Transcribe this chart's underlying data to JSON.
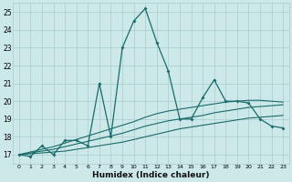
{
  "xlabel": "Humidex (Indice chaleur)",
  "ylabel": "",
  "bg_color": "#cce8e8",
  "grid_color": "#aacccc",
  "line_color": "#1a6b6b",
  "xlim": [
    -0.5,
    23.5
  ],
  "ylim": [
    16.5,
    25.5
  ],
  "yticks": [
    17,
    18,
    19,
    20,
    21,
    22,
    23,
    24,
    25
  ],
  "xticks": [
    0,
    1,
    2,
    3,
    4,
    5,
    6,
    7,
    8,
    9,
    10,
    11,
    12,
    13,
    14,
    15,
    16,
    17,
    18,
    19,
    20,
    21,
    22,
    23
  ],
  "series1_x": [
    0,
    1,
    2,
    3,
    4,
    5,
    6,
    7,
    8,
    9,
    10,
    11,
    12,
    13,
    14,
    15,
    16,
    17,
    18,
    19,
    20,
    21,
    22,
    23
  ],
  "series1_y": [
    17.0,
    16.9,
    17.5,
    17.0,
    17.8,
    17.8,
    17.5,
    21.0,
    18.0,
    23.0,
    24.5,
    25.2,
    23.3,
    21.7,
    19.0,
    19.0,
    20.2,
    21.2,
    20.0,
    20.0,
    19.9,
    19.0,
    18.6,
    18.5
  ],
  "series2_x": [
    0,
    1,
    2,
    3,
    4,
    5,
    6,
    7,
    8,
    9,
    10,
    11,
    12,
    13,
    14,
    15,
    16,
    17,
    18,
    19,
    20,
    21,
    22,
    23
  ],
  "series2_y": [
    17.0,
    17.05,
    17.1,
    17.15,
    17.2,
    17.3,
    17.4,
    17.5,
    17.6,
    17.7,
    17.85,
    18.0,
    18.15,
    18.3,
    18.45,
    18.55,
    18.65,
    18.75,
    18.85,
    18.95,
    19.05,
    19.1,
    19.15,
    19.2
  ],
  "series3_x": [
    0,
    1,
    2,
    3,
    4,
    5,
    6,
    7,
    8,
    9,
    10,
    11,
    12,
    13,
    14,
    15,
    16,
    17,
    18,
    19,
    20,
    21,
    22,
    23
  ],
  "series3_y": [
    17.0,
    17.1,
    17.2,
    17.3,
    17.45,
    17.6,
    17.75,
    17.9,
    18.05,
    18.2,
    18.4,
    18.6,
    18.75,
    18.9,
    19.0,
    19.1,
    19.2,
    19.35,
    19.45,
    19.55,
    19.65,
    19.7,
    19.75,
    19.8
  ],
  "series4_x": [
    0,
    1,
    2,
    3,
    4,
    5,
    6,
    7,
    8,
    9,
    10,
    11,
    12,
    13,
    14,
    15,
    16,
    17,
    18,
    19,
    20,
    21,
    22,
    23
  ],
  "series4_y": [
    17.0,
    17.15,
    17.3,
    17.45,
    17.65,
    17.85,
    18.05,
    18.25,
    18.45,
    18.65,
    18.85,
    19.1,
    19.3,
    19.45,
    19.55,
    19.65,
    19.75,
    19.85,
    19.95,
    20.0,
    20.05,
    20.05,
    20.0,
    19.95
  ]
}
